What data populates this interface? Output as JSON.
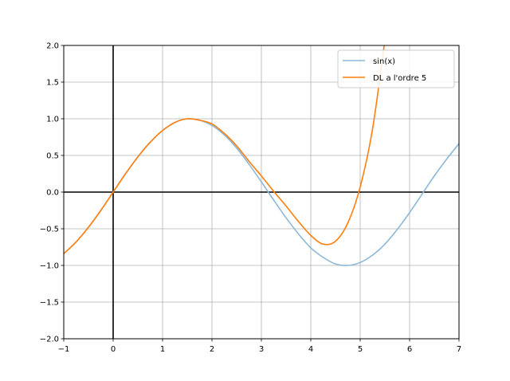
{
  "chart_data": {
    "type": "line",
    "title": "",
    "xlabel": "",
    "ylabel": "",
    "xlim": [
      -1,
      7
    ],
    "ylim": [
      -2,
      2
    ],
    "grid": true,
    "legend_position": "top-right",
    "x_ticks": [
      -1,
      0,
      1,
      2,
      3,
      4,
      5,
      6,
      7
    ],
    "y_ticks": [
      -2.0,
      -1.5,
      -1.0,
      -0.5,
      0.0,
      0.5,
      1.0,
      1.5,
      2.0
    ],
    "x_tick_labels": [
      "−1",
      "0",
      "1",
      "2",
      "3",
      "4",
      "5",
      "6",
      "7"
    ],
    "y_tick_labels": [
      "−2.0",
      "−1.5",
      "−1.0",
      "−0.5",
      "0.0",
      "0.5",
      "1.0",
      "1.5",
      "2.0"
    ],
    "axes_lines": {
      "x": 0,
      "y": 0
    },
    "series": [
      {
        "name": "sin(x)",
        "color": "#8cb8d8",
        "x": [
          -1.0,
          -0.75,
          -0.5,
          -0.25,
          0.0,
          0.25,
          0.5,
          0.75,
          1.0,
          1.25,
          1.5,
          1.75,
          2.0,
          2.25,
          2.5,
          2.75,
          3.0,
          3.25,
          3.5,
          3.75,
          4.0,
          4.25,
          4.5,
          4.75,
          5.0,
          5.25,
          5.5,
          5.75,
          6.0,
          6.25,
          6.5,
          6.75,
          7.0
        ],
        "y": [
          -0.84,
          -0.68,
          -0.48,
          -0.25,
          0.0,
          0.25,
          0.48,
          0.68,
          0.84,
          0.95,
          1.0,
          0.98,
          0.91,
          0.78,
          0.6,
          0.38,
          0.14,
          -0.11,
          -0.35,
          -0.57,
          -0.76,
          -0.89,
          -0.98,
          -1.0,
          -0.96,
          -0.86,
          -0.71,
          -0.51,
          -0.28,
          -0.03,
          0.22,
          0.45,
          0.66
        ]
      },
      {
        "name": "DL a l'ordre 5",
        "color": "#ff7f0e",
        "x": [
          -1.0,
          -0.75,
          -0.5,
          -0.25,
          0.0,
          0.25,
          0.5,
          0.75,
          1.0,
          1.25,
          1.5,
          1.75,
          2.0,
          2.25,
          2.5,
          2.75,
          3.0,
          3.25,
          3.5,
          3.75,
          4.0,
          4.25,
          4.5,
          4.75,
          5.0,
          5.25,
          5.5
        ],
        "y": [
          -0.84,
          -0.68,
          -0.48,
          -0.25,
          0.0,
          0.25,
          0.48,
          0.68,
          0.84,
          0.95,
          1.0,
          0.98,
          0.93,
          0.8,
          0.63,
          0.42,
          0.22,
          0.01,
          -0.19,
          -0.4,
          -0.59,
          -0.71,
          -0.67,
          -0.42,
          0.07,
          0.86,
          2.07
        ]
      }
    ]
  }
}
